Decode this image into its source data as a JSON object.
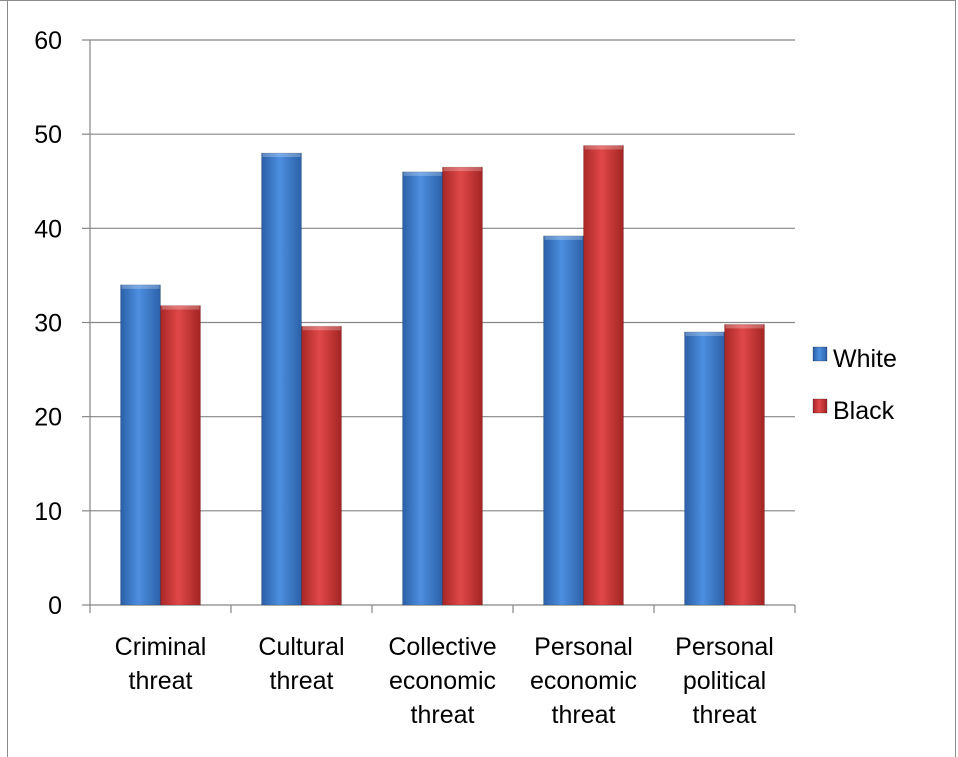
{
  "chart_data": {
    "type": "bar",
    "title": "",
    "xlabel": "",
    "ylabel": "",
    "categories": [
      [
        "Criminal",
        "threat"
      ],
      [
        "Cultural",
        "threat"
      ],
      [
        "Collective",
        "economic",
        "threat"
      ],
      [
        "Personal",
        "economic",
        "threat"
      ],
      [
        "Personal",
        "political",
        "threat"
      ]
    ],
    "series": [
      {
        "name": "White",
        "color": "#3f7fd1",
        "values": [
          34,
          48,
          46,
          39.2,
          29
        ]
      },
      {
        "name": "Black",
        "color": "#d33b3b",
        "values": [
          31.8,
          29.6,
          46.5,
          48.8,
          29.8
        ]
      }
    ],
    "ylim": [
      0,
      60
    ],
    "yticks": [
      0,
      10,
      20,
      30,
      40,
      50,
      60
    ],
    "grid": true,
    "legend_position": "right"
  }
}
